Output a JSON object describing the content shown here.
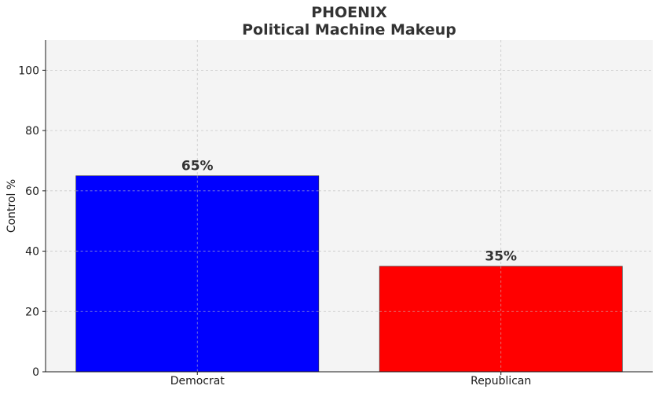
{
  "chart_data": {
    "type": "bar",
    "title_line1": "PHOENIX",
    "title_line2": "Political Machine Makeup",
    "xlabel": "",
    "ylabel": "Control %",
    "categories": [
      "Democrat",
      "Republican"
    ],
    "values": [
      65,
      35
    ],
    "data_labels": [
      "65%",
      "35%"
    ],
    "colors": [
      "#0000ff",
      "#ff0000"
    ],
    "ylim": [
      0,
      110
    ],
    "yticks": [
      0,
      20,
      40,
      60,
      80,
      100
    ],
    "grid": true,
    "legend": "none"
  },
  "style": {
    "plot_background": "#f4f4f4",
    "grid_color": "#c8c8c8",
    "bar_edge": "#333333"
  }
}
